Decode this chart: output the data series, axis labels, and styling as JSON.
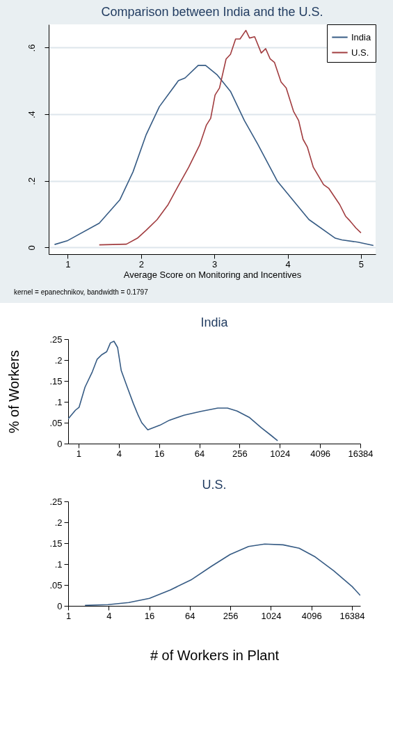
{
  "chart_data": [
    {
      "type": "line",
      "title": "Comparison between India and the U.S.",
      "xlabel": "Average Score on Monitoring and Incentives",
      "xlim": [
        0.74,
        5.2
      ],
      "xticks": [
        1,
        2,
        3,
        4,
        5
      ],
      "ylim": [
        -0.02,
        0.67
      ],
      "yticks": [
        {
          "value": 0,
          "label": "0"
        },
        {
          "value": 0.2,
          "label": ".2"
        },
        {
          "value": 0.4,
          "label": ".4"
        },
        {
          "value": 0.6,
          "label": ".6"
        }
      ],
      "grid": "y",
      "legend": "top right",
      "annotations": [
        "kernel = epanechnikov, bandwidth = 0.1797"
      ],
      "series": [
        {
          "name": "India",
          "color": "#365b84",
          "x": [
            0.82,
            1.0,
            1.43,
            1.71,
            1.89,
            2.07,
            2.25,
            2.51,
            2.6,
            2.78,
            2.88,
            3.04,
            3.22,
            3.41,
            3.59,
            3.86,
            4.29,
            4.65,
            4.74,
            4.96,
            5.17
          ],
          "values": [
            0.009,
            0.021,
            0.073,
            0.143,
            0.227,
            0.339,
            0.423,
            0.501,
            0.509,
            0.547,
            0.547,
            0.518,
            0.469,
            0.381,
            0.311,
            0.199,
            0.084,
            0.028,
            0.023,
            0.016,
            0.006
          ]
        },
        {
          "name": "U.S.",
          "color": "#a13c3f",
          "x": [
            1.43,
            1.8,
            1.95,
            2.07,
            2.22,
            2.37,
            2.5,
            2.65,
            2.8,
            2.89,
            2.95,
            3.01,
            3.07,
            3.16,
            3.22,
            3.29,
            3.35,
            3.43,
            3.48,
            3.55,
            3.64,
            3.7,
            3.76,
            3.82,
            3.91,
            3.98,
            4.08,
            4.15,
            4.21,
            4.27,
            4.35,
            4.49,
            4.56,
            4.71,
            4.79,
            4.85,
            4.93,
            5.0
          ],
          "values": [
            0.008,
            0.01,
            0.028,
            0.052,
            0.084,
            0.129,
            0.182,
            0.241,
            0.308,
            0.367,
            0.388,
            0.458,
            0.479,
            0.566,
            0.58,
            0.626,
            0.626,
            0.652,
            0.629,
            0.633,
            0.584,
            0.597,
            0.567,
            0.556,
            0.497,
            0.479,
            0.409,
            0.381,
            0.325,
            0.301,
            0.241,
            0.189,
            0.178,
            0.129,
            0.094,
            0.08,
            0.059,
            0.044
          ]
        }
      ]
    },
    {
      "type": "line",
      "title": "India",
      "ylabel": "% of Workers",
      "log": "x",
      "color": "#365b84",
      "xlim": [
        0.7,
        16384
      ],
      "xticks": [
        1,
        4,
        16,
        64,
        256,
        1024,
        4096,
        16384
      ],
      "ylim": [
        0,
        0.25
      ],
      "yticks": [
        {
          "value": 0,
          "label": "0"
        },
        {
          "value": 0.05,
          "label": ".05"
        },
        {
          "value": 0.1,
          "label": ".1"
        },
        {
          "value": 0.15,
          "label": ".15"
        },
        {
          "value": 0.2,
          "label": ".2"
        },
        {
          "value": 0.25,
          "label": ".25"
        }
      ],
      "x": [
        0.7,
        0.9,
        1.02,
        1.25,
        1.61,
        1.9,
        2.24,
        2.64,
        3.0,
        3.39,
        3.84,
        4.35,
        5.36,
        6.6,
        7.79,
        8.82,
        10.86,
        16.5,
        22.9,
        37.8,
        67.6,
        121,
        169,
        235,
        356,
        540,
        753,
        950
      ],
      "values": [
        0.059,
        0.08,
        0.087,
        0.135,
        0.172,
        0.202,
        0.213,
        0.22,
        0.241,
        0.245,
        0.23,
        0.175,
        0.135,
        0.096,
        0.068,
        0.05,
        0.033,
        0.044,
        0.056,
        0.068,
        0.077,
        0.085,
        0.085,
        0.078,
        0.063,
        0.038,
        0.02,
        0.007
      ]
    },
    {
      "type": "line",
      "title": "U.S.",
      "xlabel": "# of Workers in Plant",
      "log": "x",
      "color": "#365b84",
      "xlim": [
        1,
        21800
      ],
      "xticks": [
        1,
        4,
        16,
        64,
        256,
        1024,
        4096,
        16384
      ],
      "ylim": [
        0,
        0.25
      ],
      "yticks": [
        {
          "value": 0,
          "label": "0"
        },
        {
          "value": 0.05,
          "label": ".05"
        },
        {
          "value": 0.1,
          "label": ".1"
        },
        {
          "value": 0.15,
          "label": ".15"
        },
        {
          "value": 0.2,
          "label": ".2"
        },
        {
          "value": 0.25,
          "label": ".25"
        }
      ],
      "x": [
        1.78,
        3.91,
        7.93,
        16.1,
        32.8,
        66.6,
        135,
        254,
        477,
        829,
        1553,
        2695,
        4680,
        8780,
        16530,
        21770
      ],
      "values": [
        0.001,
        0.003,
        0.008,
        0.018,
        0.038,
        0.062,
        0.095,
        0.123,
        0.142,
        0.148,
        0.146,
        0.138,
        0.117,
        0.084,
        0.046,
        0.025
      ]
    }
  ]
}
